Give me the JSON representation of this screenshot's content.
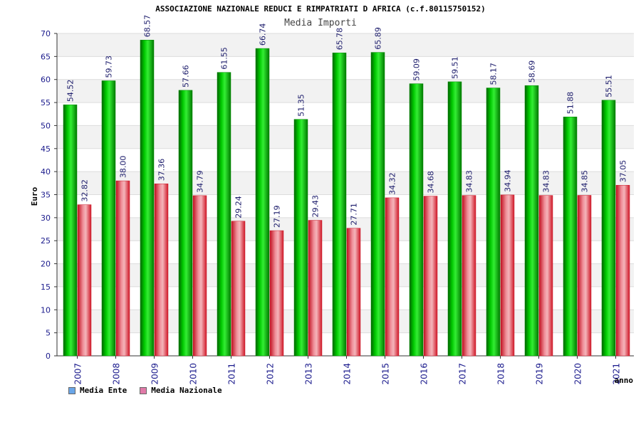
{
  "header": {
    "title": "ASSOCIAZIONE NAZIONALE REDUCI E RIMPATRIATI D AFRICA (c.f.80115750152)"
  },
  "chart_data": {
    "type": "bar",
    "title": "Media Importi",
    "xlabel": "anno",
    "ylabel": "Euro",
    "ylim": [
      0,
      70
    ],
    "ytick_step": 5,
    "grid": true,
    "legend_position": "bottom-left",
    "categories": [
      "2007",
      "2008",
      "2009",
      "2010",
      "2011",
      "2012",
      "2013",
      "2014",
      "2015",
      "2016",
      "2017",
      "2018",
      "2019",
      "2020",
      "2021"
    ],
    "series": [
      {
        "name": "Media Ente",
        "color": "#00aa00",
        "legend_color": "#6aa6e8",
        "values": [
          54.52,
          59.73,
          68.57,
          57.66,
          61.55,
          66.74,
          51.35,
          65.78,
          65.89,
          59.09,
          59.51,
          58.17,
          58.69,
          51.88,
          55.51
        ],
        "labels": [
          "54.52",
          "59.73",
          "68.57",
          "57.66",
          "61.55",
          "66.74",
          "51.35",
          "65.78",
          "65.89",
          "59.09",
          "59.51",
          "58.17",
          "58.69",
          "51.88",
          "55.51"
        ]
      },
      {
        "name": "Media Nazionale",
        "color": "#e0303c",
        "legend_color": "#e07aa8",
        "values": [
          32.82,
          38.0,
          37.36,
          34.79,
          29.24,
          27.19,
          29.43,
          27.71,
          34.32,
          34.68,
          34.83,
          34.94,
          34.83,
          34.85,
          37.05
        ],
        "labels": [
          "32.82",
          "38.00",
          "37.36",
          "34.79",
          "29.24",
          "27.19",
          "29.43",
          "27.71",
          "34.32",
          "34.68",
          "34.83",
          "34.94",
          "34.83",
          "34.85",
          "37.05"
        ]
      }
    ]
  }
}
